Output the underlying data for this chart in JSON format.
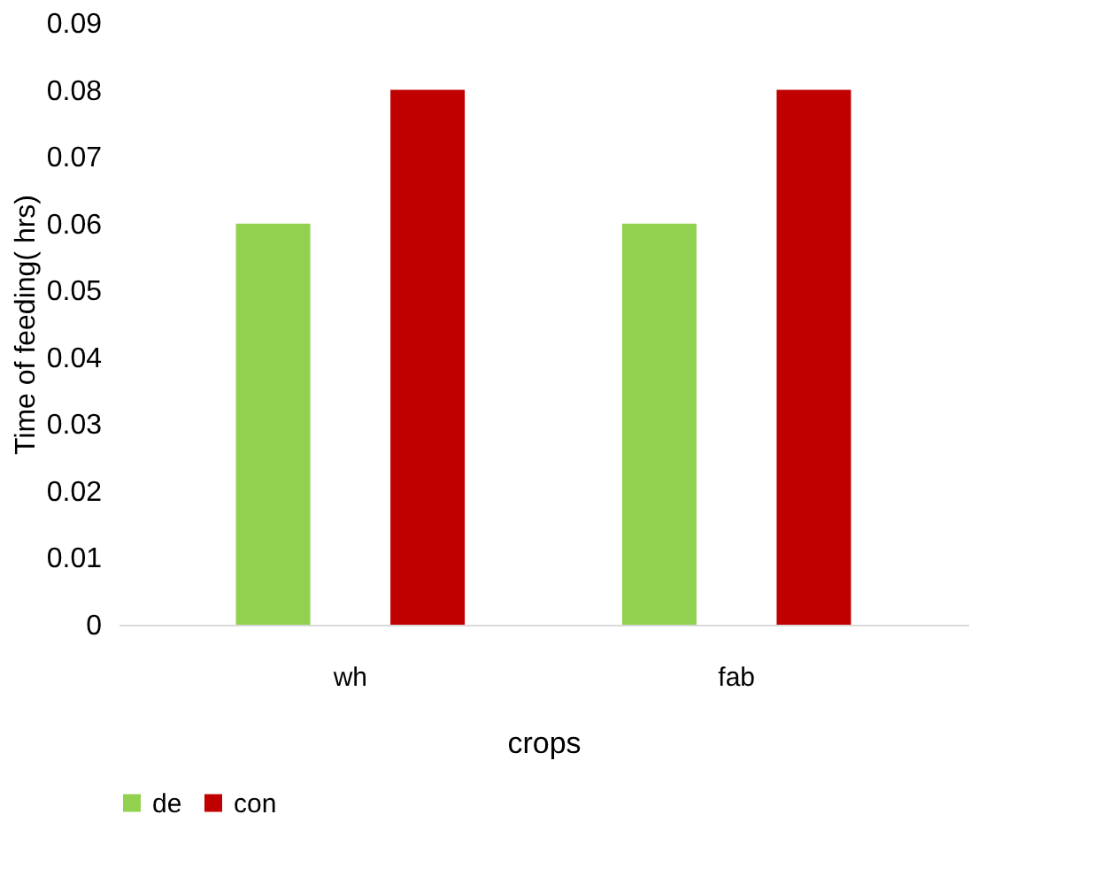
{
  "chart_data": {
    "type": "bar",
    "xlabel": "crops",
    "ylabel": "Time of feeding( hrs)",
    "categories": [
      "wh",
      "fab"
    ],
    "series": [
      {
        "name": "de",
        "color": "#92d050",
        "values": [
          0.06,
          0.06
        ]
      },
      {
        "name": "con",
        "color": "#c00000",
        "values": [
          0.08,
          0.08
        ]
      }
    ],
    "ylim": [
      0,
      0.09
    ],
    "yticks": [
      0,
      0.01,
      0.02,
      0.03,
      0.04,
      0.05,
      0.06,
      0.07,
      0.08,
      0.09
    ],
    "grid": false,
    "legend": "bottom"
  }
}
